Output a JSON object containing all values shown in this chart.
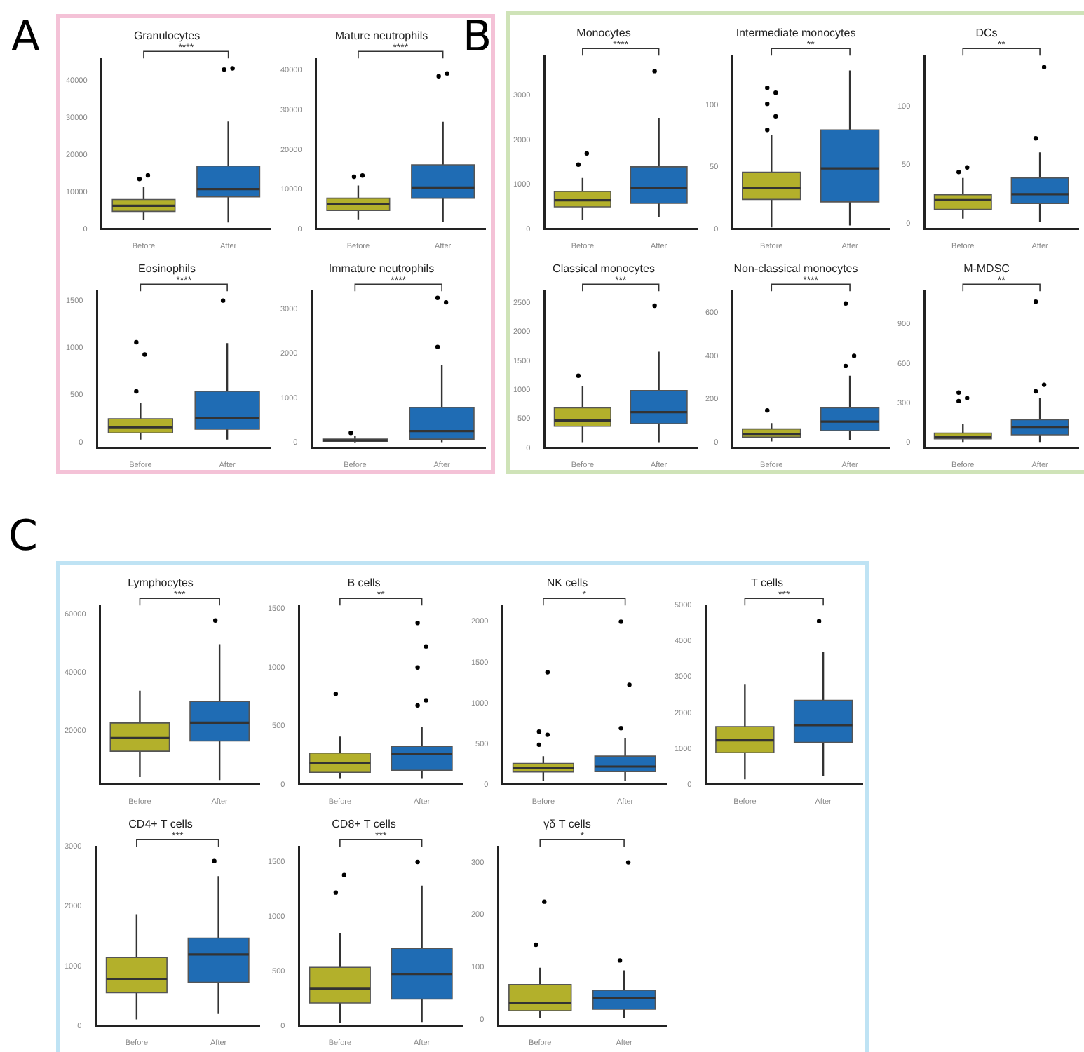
{
  "chart_data": [
    {
      "type": "box",
      "title": "Granulocytes",
      "categories": [
        "Before",
        "After"
      ],
      "colors": [
        "#b3b02b",
        "#1f6cb4"
      ],
      "ylim": [
        0,
        46000
      ],
      "yticks": [
        0,
        10000,
        20000,
        30000,
        40000
      ],
      "annotations": [
        "****",
        "A"
      ],
      "boxes": [
        {
          "low": 2500,
          "q1": 4800,
          "median": 6300,
          "q3": 8000,
          "high": 11500,
          "outliers": [
            13500,
            14500
          ]
        },
        {
          "low": 1800,
          "q1": 8700,
          "median": 10800,
          "q3": 17000,
          "high": 29000,
          "outliers": [
            43000,
            43300
          ]
        }
      ]
    },
    {
      "type": "box",
      "title": "Mature neutrophils",
      "categories": [
        "Before",
        "After"
      ],
      "colors": [
        "#b3b02b",
        "#1f6cb4"
      ],
      "ylim": [
        0,
        43000
      ],
      "yticks": [
        0,
        10000,
        20000,
        30000,
        40000
      ],
      "annotations": [
        "****"
      ],
      "boxes": [
        {
          "low": 2500,
          "q1": 4700,
          "median": 6300,
          "q3": 7800,
          "high": 11000,
          "outliers": [
            13200,
            13500
          ]
        },
        {
          "low": 1800,
          "q1": 7800,
          "median": 10500,
          "q3": 16200,
          "high": 27000,
          "outliers": [
            38500,
            39200
          ]
        }
      ]
    },
    {
      "type": "box",
      "title": "Eosinophils",
      "categories": [
        "Before",
        "After"
      ],
      "colors": [
        "#b3b02b",
        "#1f6cb4"
      ],
      "ylim": [
        -60,
        1600
      ],
      "yticks": [
        0,
        500,
        1000,
        1500
      ],
      "annotations": [
        "****"
      ],
      "boxes": [
        {
          "low": 30,
          "q1": 100,
          "median": 160,
          "q3": 250,
          "high": 420,
          "outliers": [
            540,
            930,
            1060
          ]
        },
        {
          "low": 30,
          "q1": 140,
          "median": 260,
          "q3": 540,
          "high": 1050,
          "outliers": [
            1500
          ]
        }
      ]
    },
    {
      "type": "box",
      "title": "Immature neutrophils",
      "categories": [
        "Before",
        "After"
      ],
      "colors": [
        "#b3b02b",
        "#1f6cb4"
      ],
      "ylim": [
        -120,
        3400
      ],
      "yticks": [
        0,
        1000,
        2000,
        3000
      ],
      "annotations": [
        "****"
      ],
      "boxes": [
        {
          "low": 5,
          "q1": 30,
          "median": 50,
          "q3": 80,
          "high": 150,
          "outliers": [
            220
          ]
        },
        {
          "low": 10,
          "q1": 80,
          "median": 260,
          "q3": 790,
          "high": 1750,
          "outliers": [
            2150,
            3150,
            3250
          ]
        }
      ]
    },
    {
      "type": "box",
      "title": "Monocytes",
      "categories": [
        "Before",
        "After"
      ],
      "colors": [
        "#b3b02b",
        "#1f6cb4"
      ],
      "ylim": [
        0,
        3900
      ],
      "yticks": [
        0,
        1000,
        2000,
        3000
      ],
      "annotations": [
        "****",
        "B"
      ],
      "boxes": [
        {
          "low": 200,
          "q1": 500,
          "median": 650,
          "q3": 850,
          "high": 1150,
          "outliers": [
            1450,
            1700
          ]
        },
        {
          "low": 280,
          "q1": 580,
          "median": 930,
          "q3": 1400,
          "high": 2500,
          "outliers": [
            3550
          ]
        }
      ]
    },
    {
      "type": "box",
      "title": "Intermediate monocytes",
      "categories": [
        "Before",
        "After"
      ],
      "colors": [
        "#b3b02b",
        "#1f6cb4"
      ],
      "ylim": [
        0,
        140
      ],
      "yticks": [
        0,
        50,
        100
      ],
      "annotations": [
        "**"
      ],
      "boxes": [
        {
          "low": 1.5,
          "q1": 24,
          "median": 33,
          "q3": 46,
          "high": 76,
          "outliers": [
            80,
            91,
            101,
            110,
            114
          ]
        },
        {
          "low": 3,
          "q1": 22,
          "median": 49,
          "q3": 80,
          "high": 128
        }
      ]
    },
    {
      "type": "box",
      "title": "DCs",
      "categories": [
        "Before",
        "After"
      ],
      "colors": [
        "#b3b02b",
        "#1f6cb4"
      ],
      "ylim": [
        -5,
        144
      ],
      "yticks": [
        0,
        50,
        100
      ],
      "annotations": [
        "**"
      ],
      "boxes": [
        {
          "low": 4,
          "q1": 12,
          "median": 20,
          "q3": 24.5,
          "high": 39,
          "outliers": [
            44,
            48
          ]
        },
        {
          "low": 1,
          "q1": 17,
          "median": 25,
          "q3": 39,
          "high": 61,
          "outliers": [
            73,
            134
          ]
        }
      ]
    },
    {
      "type": "box",
      "title": "Classical monocytes",
      "categories": [
        "Before",
        "After"
      ],
      "colors": [
        "#b3b02b",
        "#1f6cb4"
      ],
      "ylim": [
        0,
        2700
      ],
      "yticks": [
        0,
        500,
        1000,
        1500,
        2000,
        2500
      ],
      "annotations": [
        "***"
      ],
      "boxes": [
        {
          "low": 100,
          "q1": 375,
          "median": 477,
          "q3": 693,
          "high": 1063,
          "outliers": [
            1245
          ]
        },
        {
          "low": 100,
          "q1": 420,
          "median": 619,
          "q3": 989,
          "high": 1659,
          "outliers": [
            2449
          ]
        }
      ]
    },
    {
      "type": "box",
      "title": "Non-classical monocytes",
      "categories": [
        "Before",
        "After"
      ],
      "colors": [
        "#b3b02b",
        "#1f6cb4"
      ],
      "ylim": [
        -25,
        700
      ],
      "yticks": [
        0,
        200,
        400,
        600
      ],
      "annotations": [
        "****"
      ],
      "boxes": [
        {
          "low": 5,
          "q1": 25,
          "median": 40,
          "q3": 63,
          "high": 90,
          "outliers": [
            149
          ]
        },
        {
          "low": 10,
          "q1": 55,
          "median": 97,
          "q3": 161,
          "high": 309,
          "outliers": [
            354,
            401,
            643
          ]
        }
      ]
    },
    {
      "type": "box",
      "title": "M-MDSC",
      "categories": [
        "Before",
        "After"
      ],
      "colors": [
        "#b3b02b",
        "#1f6cb4"
      ],
      "ylim": [
        -40,
        1150
      ],
      "yticks": [
        0,
        300,
        600,
        900
      ],
      "annotations": [
        "**"
      ],
      "boxes": [
        {
          "low": 5,
          "q1": 30,
          "median": 45,
          "q3": 73,
          "high": 140,
          "outliers": [
            316,
            339,
            381
          ]
        },
        {
          "low": 5,
          "q1": 60,
          "median": 120,
          "q3": 175,
          "high": 342,
          "outliers": [
            390,
            440,
            1070
          ]
        }
      ]
    },
    {
      "type": "box",
      "title": "Lymphocytes",
      "categories": [
        "Before",
        "After"
      ],
      "colors": [
        "#b3b02b",
        "#1f6cb4"
      ],
      "ylim": [
        1400,
        63000
      ],
      "yticks": [
        20000,
        40000,
        60000
      ],
      "annotations": [
        "***",
        "C"
      ],
      "boxes": [
        {
          "low": 4000,
          "q1": 12900,
          "median": 17400,
          "q3": 22600,
          "high": 33700
        },
        {
          "low": 3000,
          "q1": 16400,
          "median": 22700,
          "q3": 30000,
          "high": 49700,
          "outliers": [
            57800
          ]
        }
      ]
    },
    {
      "type": "box",
      "title": "B cells",
      "categories": [
        "Before",
        "After"
      ],
      "colors": [
        "#b3b02b",
        "#1f6cb4"
      ],
      "ylim": [
        0,
        1530
      ],
      "yticks": [
        0,
        500,
        1000,
        1500
      ],
      "annotations": [
        "**"
      ],
      "boxes": [
        {
          "low": 49,
          "q1": 105,
          "median": 185,
          "q3": 270,
          "high": 410,
          "outliers": [
            775
          ]
        },
        {
          "low": 50,
          "q1": 122,
          "median": 260,
          "q3": 327,
          "high": 490,
          "outliers": [
            676,
            720,
            1000,
            1180,
            1380
          ]
        }
      ]
    },
    {
      "type": "box",
      "title": "NK cells",
      "categories": [
        "Before",
        "After"
      ],
      "colors": [
        "#b3b02b",
        "#1f6cb4"
      ],
      "ylim": [
        0,
        2200
      ],
      "yticks": [
        0,
        500,
        1000,
        1500,
        2000
      ],
      "annotations": [
        "*"
      ],
      "boxes": [
        {
          "low": 50,
          "q1": 156,
          "median": 203,
          "q3": 260,
          "high": 350,
          "outliers": [
            490,
            613,
            650,
            1380
          ]
        },
        {
          "low": 50,
          "q1": 160,
          "median": 222,
          "q3": 350,
          "high": 575,
          "outliers": [
            693,
            1226,
            2000
          ]
        }
      ]
    },
    {
      "type": "box",
      "title": "T cells",
      "categories": [
        "Before",
        "After"
      ],
      "colors": [
        "#b3b02b",
        "#1f6cb4"
      ],
      "ylim": [
        0,
        5000
      ],
      "yticks": [
        0,
        1000,
        2000,
        3000,
        4000,
        5000
      ],
      "annotations": [
        "***"
      ],
      "boxes": [
        {
          "low": 150,
          "q1": 890,
          "median": 1235,
          "q3": 1620,
          "high": 2810
        },
        {
          "low": 250,
          "q1": 1180,
          "median": 1660,
          "q3": 2350,
          "high": 3700,
          "outliers": [
            4560
          ]
        }
      ]
    },
    {
      "type": "box",
      "title": "CD4+ T cells",
      "categories": [
        "Before",
        "After"
      ],
      "colors": [
        "#b3b02b",
        "#1f6cb4"
      ],
      "ylim": [
        0,
        3000
      ],
      "yticks": [
        0,
        1000,
        2000,
        3000
      ],
      "annotations": [
        "***"
      ],
      "boxes": [
        {
          "low": 110,
          "q1": 557,
          "median": 790,
          "q3": 1145,
          "high": 1870
        },
        {
          "low": 200,
          "q1": 730,
          "median": 1196,
          "q3": 1470,
          "high": 2505,
          "outliers": [
            2760
          ]
        }
      ]
    },
    {
      "type": "box",
      "title": "CD8+ T cells",
      "categories": [
        "Before",
        "After"
      ],
      "colors": [
        "#b3b02b",
        "#1f6cb4"
      ],
      "ylim": [
        0,
        1640
      ],
      "yticks": [
        0,
        500,
        1000,
        1500
      ],
      "annotations": [
        "***"
      ],
      "boxes": [
        {
          "low": 30,
          "q1": 210,
          "median": 340,
          "q3": 536,
          "high": 848,
          "outliers": [
            1220,
            1380
          ]
        },
        {
          "low": 36,
          "q1": 246,
          "median": 475,
          "q3": 710,
          "high": 1283,
          "outliers": [
            1500
          ]
        }
      ]
    },
    {
      "type": "box",
      "title": "γδ T cells",
      "categories": [
        "Before",
        "After"
      ],
      "colors": [
        "#b3b02b",
        "#1f6cb4"
      ],
      "ylim": [
        -12,
        330
      ],
      "yticks": [
        0,
        100,
        200,
        300
      ],
      "annotations": [
        "*"
      ],
      "boxes": [
        {
          "low": 3,
          "q1": 17,
          "median": 32,
          "q3": 67,
          "high": 99,
          "outliers": [
            143,
            225
          ]
        },
        {
          "low": 3,
          "q1": 20,
          "median": 41,
          "q3": 56,
          "high": 94,
          "outliers": [
            113,
            300
          ]
        }
      ]
    }
  ]
}
